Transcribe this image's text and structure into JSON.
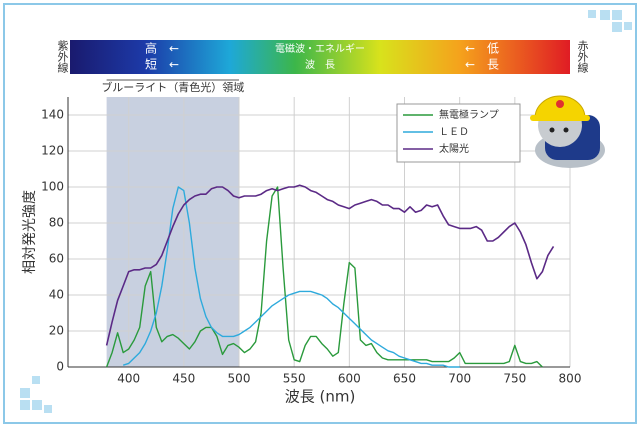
{
  "chart_data": {
    "type": "line",
    "spectrum_bar": {
      "left": "紫外線",
      "right": "赤外線",
      "high": "高　←",
      "short": "短　←",
      "energy": "電磁波・エネルギー",
      "wave": "波　長",
      "low": "←　低",
      "long": "←　長"
    },
    "region": {
      "label": "ブルーライト（青色光）領域",
      "range": [
        380,
        500
      ]
    },
    "ylabel": "相対発光強度",
    "xlabel": "波長 (nm)",
    "xlim": [
      345,
      800
    ],
    "ylim": [
      0,
      150
    ],
    "xticks": [
      400,
      450,
      500,
      550,
      600,
      650,
      700,
      750,
      800
    ],
    "yticks": [
      0,
      20,
      40,
      60,
      80,
      100,
      120,
      140
    ],
    "grid": true,
    "x": [
      380,
      385,
      390,
      395,
      400,
      405,
      410,
      415,
      420,
      425,
      430,
      435,
      440,
      445,
      450,
      455,
      460,
      465,
      470,
      475,
      480,
      485,
      490,
      495,
      500,
      505,
      510,
      515,
      520,
      525,
      530,
      535,
      540,
      545,
      550,
      555,
      560,
      565,
      570,
      575,
      580,
      585,
      590,
      595,
      600,
      605,
      610,
      615,
      620,
      625,
      630,
      635,
      640,
      645,
      650,
      655,
      660,
      665,
      670,
      675,
      680,
      685,
      690,
      695,
      700,
      705,
      710,
      715,
      720,
      725,
      730,
      735,
      740,
      745,
      750,
      755,
      760,
      765,
      770,
      775,
      780,
      785
    ],
    "series": [
      {
        "name": "無電極ランプ",
        "color": "#2a9a3c",
        "values": [
          0,
          8,
          19,
          8,
          10,
          15,
          22,
          45,
          53,
          22,
          14,
          17,
          18,
          16,
          13,
          10,
          14,
          20,
          22,
          22,
          17,
          7,
          12,
          13,
          11,
          8,
          10,
          14,
          30,
          70,
          95,
          100,
          55,
          15,
          4,
          3,
          12,
          17,
          17,
          13,
          10,
          6,
          8,
          35,
          58,
          55,
          15,
          12,
          13,
          8,
          5,
          4,
          4,
          4,
          4,
          4,
          4,
          4,
          4,
          3,
          3,
          3,
          3,
          5,
          8,
          2,
          2,
          2,
          2,
          2,
          2,
          2,
          2,
          3,
          12,
          3,
          2,
          2,
          3,
          0,
          null,
          null
        ]
      },
      {
        "name": "ＬＥＤ",
        "color": "#2eaadc",
        "values": [
          null,
          null,
          null,
          1,
          2,
          5,
          8,
          13,
          20,
          30,
          45,
          65,
          88,
          100,
          98,
          80,
          55,
          38,
          28,
          22,
          19,
          17,
          17,
          17,
          18,
          20,
          22,
          25,
          28,
          31,
          34,
          36,
          38,
          40,
          41,
          42,
          42,
          42,
          41,
          40,
          38,
          35,
          33,
          30,
          27,
          24,
          21,
          18,
          15,
          13,
          11,
          9,
          8,
          6,
          5,
          4,
          3,
          2,
          2,
          1,
          1,
          1,
          0,
          0,
          0,
          null,
          null,
          null,
          null,
          null,
          null,
          null,
          null,
          null,
          null,
          null,
          null,
          null,
          null,
          null,
          null,
          null
        ]
      },
      {
        "name": "太陽光",
        "color": "#5b2a86",
        "values": [
          12,
          25,
          37,
          45,
          53,
          54,
          54,
          55,
          55,
          57,
          62,
          70,
          78,
          85,
          90,
          93,
          95,
          96,
          96,
          99,
          100,
          100,
          98,
          95,
          94,
          95,
          95,
          95,
          96,
          98,
          99,
          98,
          99,
          100,
          100,
          101,
          100,
          98,
          97,
          95,
          93,
          92,
          90,
          89,
          88,
          90,
          91,
          92,
          93,
          92,
          90,
          90,
          88,
          88,
          86,
          89,
          86,
          87,
          90,
          89,
          90,
          84,
          79,
          78,
          77,
          77,
          77,
          78,
          76,
          70,
          70,
          72,
          75,
          78,
          80,
          75,
          68,
          58,
          49,
          53,
          62,
          67
        ]
      }
    ]
  }
}
